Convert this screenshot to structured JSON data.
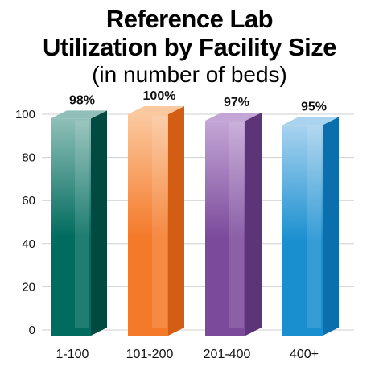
{
  "chart_data": {
    "type": "bar",
    "title_lines": [
      "Reference Lab",
      "Utilization by Facility Size"
    ],
    "subtitle": "(in number of beds)",
    "categories": [
      "1-100",
      "101-200",
      "201-400",
      "400+"
    ],
    "values": [
      98,
      100,
      97,
      95
    ],
    "data_labels": [
      "98%",
      "100%",
      "97%",
      "95%"
    ],
    "yticks": [
      "0",
      "20",
      "40",
      "60",
      "80",
      "100"
    ],
    "ylim": [
      0,
      100
    ],
    "grid": true,
    "colors": [
      "#006B5E",
      "#F47A2A",
      "#7B4A9B",
      "#1A8FD0"
    ],
    "colors_light": [
      "#8FBFB8",
      "#FBC9A0",
      "#C4A6D6",
      "#A9D3EF"
    ],
    "colors_dark": [
      "#004A41",
      "#D25E14",
      "#5E3478",
      "#0B6FAE"
    ]
  }
}
